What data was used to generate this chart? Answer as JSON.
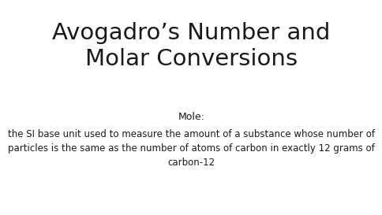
{
  "title_line1": "Avogadro’s Number and",
  "title_line2": "Molar Conversions",
  "subtitle": "Mole:",
  "body_line1": "the SI base unit used to measure the amount of a substance whose number of",
  "body_line2": "particles is the same as the number of atoms of carbon in exactly 12 grams of",
  "body_line3": "carbon-12",
  "bg_color": "#ffffff",
  "text_color": "#1a1a1a",
  "title_fontsize": 21,
  "subtitle_fontsize": 9,
  "body_fontsize": 8.5
}
